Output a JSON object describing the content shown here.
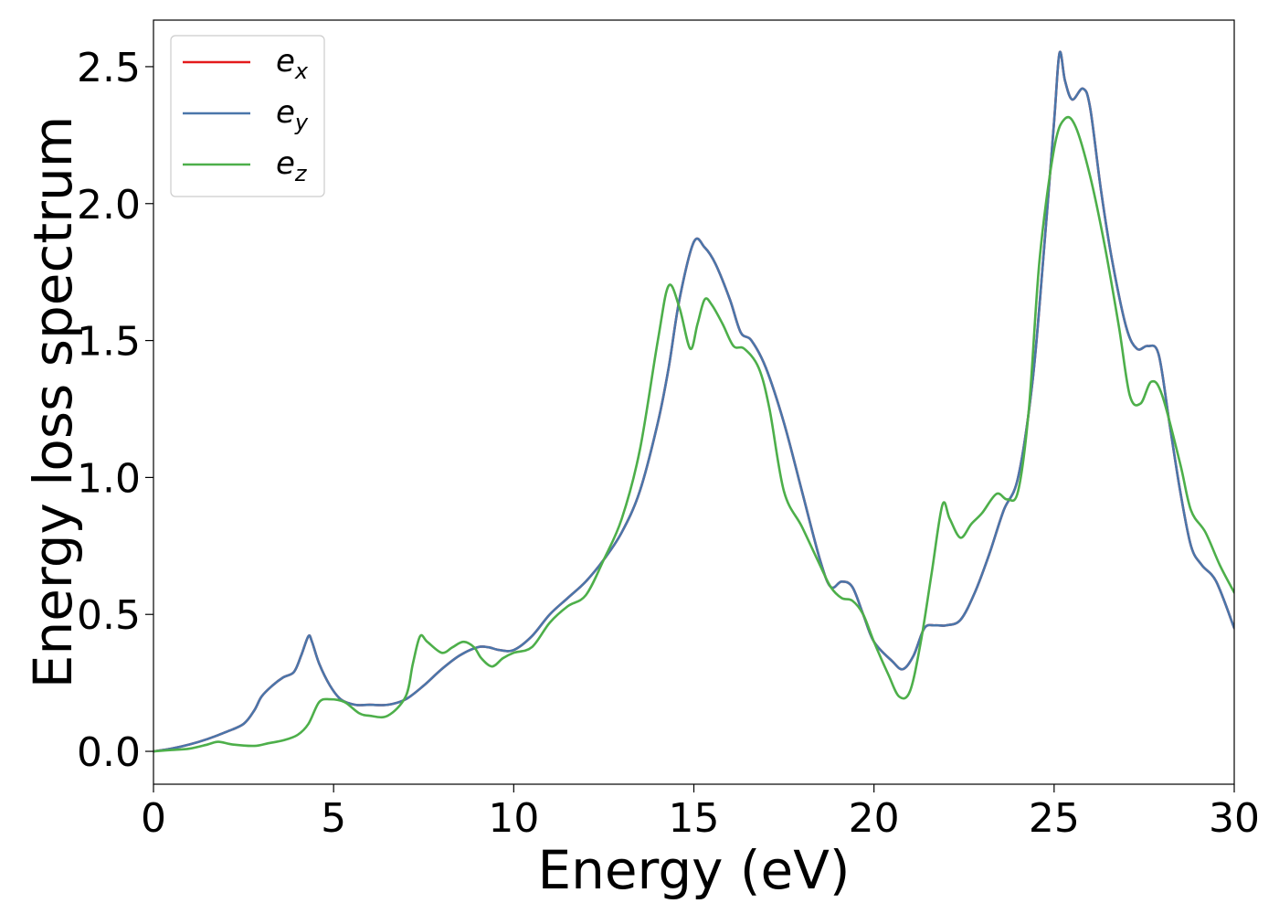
{
  "chart_data": {
    "type": "line",
    "title": "",
    "xlabel": "Energy (eV)",
    "ylabel": "Energy loss spectrum",
    "xlim": [
      0,
      30
    ],
    "ylim": [
      -0.12,
      2.67
    ],
    "x_ticks": [
      "0",
      "5",
      "10",
      "15",
      "20",
      "25",
      "30"
    ],
    "x_tick_values": [
      0,
      5,
      10,
      15,
      20,
      25,
      30
    ],
    "y_ticks": [
      "0.0",
      "0.5",
      "1.0",
      "1.5",
      "2.0",
      "2.5"
    ],
    "y_tick_values": [
      0,
      0.5,
      1.0,
      1.5,
      2.0,
      2.5
    ],
    "grid": false,
    "legend_position": "top-left",
    "series": [
      {
        "name": "e",
        "subscript": "x",
        "color": "#e41a1c",
        "x": [
          0,
          0.5,
          1,
          1.5,
          2,
          2.5,
          2.8,
          3,
          3.3,
          3.6,
          3.9,
          4.1,
          4.3,
          4.4,
          4.6,
          4.9,
          5.2,
          5.6,
          6,
          6.5,
          7,
          7.5,
          8,
          8.5,
          9,
          9.3,
          9.6,
          10,
          10.5,
          11,
          11.5,
          12,
          12.5,
          13,
          13.5,
          14,
          14.3,
          14.6,
          15,
          15.3,
          15.6,
          16,
          16.3,
          16.6,
          17,
          17.5,
          18,
          18.5,
          18.8,
          19.1,
          19.4,
          19.7,
          20,
          20.5,
          20.8,
          21.1,
          21.4,
          21.7,
          22,
          22.4,
          22.8,
          23.2,
          23.6,
          24,
          24.4,
          24.7,
          25,
          25.15,
          25.3,
          25.5,
          25.8,
          26,
          26.3,
          26.6,
          27,
          27.3,
          27.6,
          27.9,
          28.2,
          28.5,
          28.8,
          29.1,
          29.5,
          30
        ],
        "y": [
          0,
          0.01,
          0.025,
          0.045,
          0.07,
          0.1,
          0.15,
          0.2,
          0.24,
          0.27,
          0.29,
          0.35,
          0.42,
          0.4,
          0.32,
          0.24,
          0.19,
          0.17,
          0.17,
          0.17,
          0.19,
          0.24,
          0.3,
          0.35,
          0.38,
          0.38,
          0.37,
          0.37,
          0.42,
          0.5,
          0.56,
          0.62,
          0.7,
          0.8,
          0.95,
          1.2,
          1.4,
          1.65,
          1.86,
          1.84,
          1.78,
          1.65,
          1.53,
          1.5,
          1.4,
          1.2,
          0.95,
          0.7,
          0.6,
          0.62,
          0.6,
          0.5,
          0.4,
          0.33,
          0.3,
          0.35,
          0.45,
          0.46,
          0.46,
          0.48,
          0.58,
          0.72,
          0.88,
          1.0,
          1.35,
          1.8,
          2.3,
          2.55,
          2.45,
          2.38,
          2.42,
          2.35,
          2.05,
          1.8,
          1.55,
          1.47,
          1.48,
          1.45,
          1.2,
          0.95,
          0.75,
          0.68,
          0.62,
          0.45
        ]
      },
      {
        "name": "e",
        "subscript": "y",
        "color": "#4a76aa",
        "x": [
          0,
          0.5,
          1,
          1.5,
          2,
          2.5,
          2.8,
          3,
          3.3,
          3.6,
          3.9,
          4.1,
          4.3,
          4.4,
          4.6,
          4.9,
          5.2,
          5.6,
          6,
          6.5,
          7,
          7.5,
          8,
          8.5,
          9,
          9.3,
          9.6,
          10,
          10.5,
          11,
          11.5,
          12,
          12.5,
          13,
          13.5,
          14,
          14.3,
          14.6,
          15,
          15.3,
          15.6,
          16,
          16.3,
          16.6,
          17,
          17.5,
          18,
          18.5,
          18.8,
          19.1,
          19.4,
          19.7,
          20,
          20.5,
          20.8,
          21.1,
          21.4,
          21.7,
          22,
          22.4,
          22.8,
          23.2,
          23.6,
          24,
          24.4,
          24.7,
          25,
          25.15,
          25.3,
          25.5,
          25.8,
          26,
          26.3,
          26.6,
          27,
          27.3,
          27.6,
          27.9,
          28.2,
          28.5,
          28.8,
          29.1,
          29.5,
          30
        ],
        "y": [
          0,
          0.01,
          0.025,
          0.045,
          0.07,
          0.1,
          0.15,
          0.2,
          0.24,
          0.27,
          0.29,
          0.35,
          0.42,
          0.4,
          0.32,
          0.24,
          0.19,
          0.17,
          0.17,
          0.17,
          0.19,
          0.24,
          0.3,
          0.35,
          0.38,
          0.38,
          0.37,
          0.37,
          0.42,
          0.5,
          0.56,
          0.62,
          0.7,
          0.8,
          0.95,
          1.2,
          1.4,
          1.65,
          1.86,
          1.84,
          1.78,
          1.65,
          1.53,
          1.5,
          1.4,
          1.2,
          0.95,
          0.7,
          0.6,
          0.62,
          0.6,
          0.5,
          0.4,
          0.33,
          0.3,
          0.35,
          0.45,
          0.46,
          0.46,
          0.48,
          0.58,
          0.72,
          0.88,
          1.0,
          1.35,
          1.8,
          2.3,
          2.55,
          2.45,
          2.38,
          2.42,
          2.35,
          2.05,
          1.8,
          1.55,
          1.47,
          1.48,
          1.45,
          1.2,
          0.95,
          0.75,
          0.68,
          0.62,
          0.45
        ]
      },
      {
        "name": "e",
        "subscript": "z",
        "color": "#4daf4a",
        "x": [
          0,
          0.5,
          1,
          1.5,
          1.8,
          2.2,
          2.8,
          3.2,
          3.6,
          4,
          4.3,
          4.6,
          4.9,
          5.3,
          5.7,
          6,
          6.5,
          7,
          7.2,
          7.4,
          7.6,
          8,
          8.3,
          8.6,
          8.9,
          9.1,
          9.4,
          9.7,
          10,
          10.5,
          11,
          11.5,
          12,
          12.5,
          13,
          13.5,
          14,
          14.3,
          14.6,
          14.9,
          15.1,
          15.3,
          15.5,
          15.8,
          16.1,
          16.4,
          16.8,
          17.1,
          17.5,
          18,
          18.5,
          18.8,
          19.1,
          19.4,
          19.7,
          20,
          20.4,
          20.7,
          21,
          21.3,
          21.6,
          21.9,
          22.1,
          22.4,
          22.7,
          23,
          23.4,
          23.7,
          24,
          24.3,
          24.6,
          25,
          25.3,
          25.6,
          26,
          26.4,
          26.8,
          27.1,
          27.4,
          27.7,
          28,
          28.5,
          28.8,
          29.2,
          29.6,
          30
        ],
        "y": [
          0,
          0.005,
          0.01,
          0.025,
          0.035,
          0.025,
          0.02,
          0.03,
          0.04,
          0.06,
          0.1,
          0.18,
          0.19,
          0.18,
          0.14,
          0.13,
          0.13,
          0.2,
          0.32,
          0.42,
          0.4,
          0.36,
          0.38,
          0.4,
          0.38,
          0.34,
          0.31,
          0.34,
          0.36,
          0.38,
          0.47,
          0.53,
          0.57,
          0.7,
          0.85,
          1.1,
          1.5,
          1.7,
          1.62,
          1.47,
          1.56,
          1.65,
          1.63,
          1.56,
          1.48,
          1.47,
          1.4,
          1.25,
          0.95,
          0.82,
          0.68,
          0.6,
          0.56,
          0.55,
          0.5,
          0.4,
          0.28,
          0.2,
          0.22,
          0.4,
          0.65,
          0.9,
          0.85,
          0.78,
          0.83,
          0.87,
          0.94,
          0.92,
          0.95,
          1.25,
          1.8,
          2.2,
          2.31,
          2.28,
          2.1,
          1.85,
          1.55,
          1.3,
          1.27,
          1.35,
          1.3,
          1.05,
          0.88,
          0.8,
          0.68,
          0.58
        ]
      }
    ]
  }
}
